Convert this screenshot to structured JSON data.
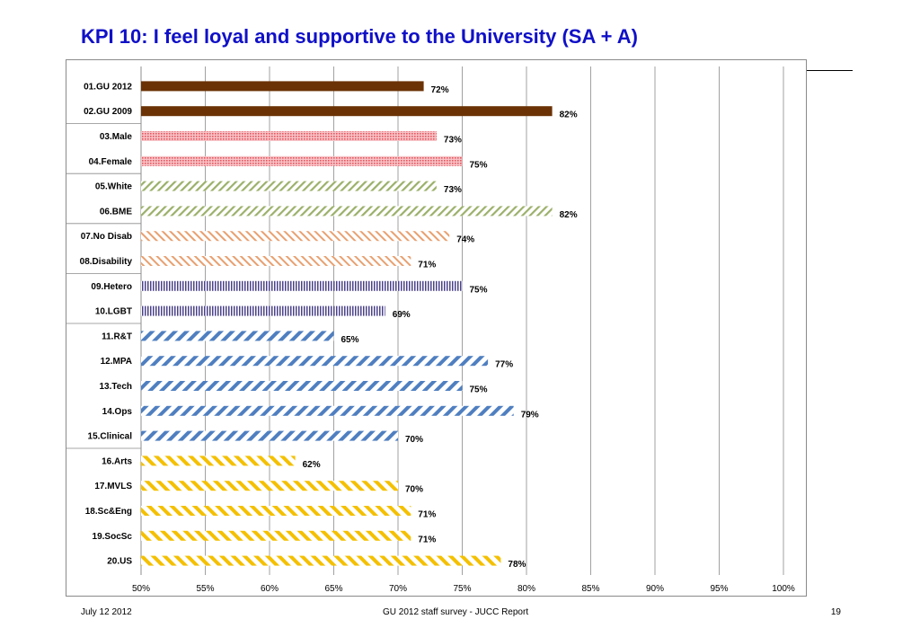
{
  "title": "KPI 10: I feel loyal and supportive to the University (SA + A)",
  "footer": {
    "date": "July 12 2012",
    "source": "GU 2012 staff survey -  JUCC Report",
    "page": "19"
  },
  "chart_data": {
    "type": "bar",
    "orientation": "horizontal",
    "title": "",
    "xlabel": "",
    "ylabel": "",
    "xlim": [
      0.5,
      1.0
    ],
    "x_ticks": [
      "50%",
      "55%",
      "60%",
      "65%",
      "70%",
      "75%",
      "80%",
      "85%",
      "90%",
      "95%",
      "100%"
    ],
    "grid": "vertical",
    "legend": "none",
    "categories": [
      "01.GU 2012",
      "02.GU 2009",
      "03.Male",
      "04.Female",
      "05.White",
      "06.BME",
      "07.No Disab",
      "08.Disability",
      "09.Hetero",
      "10.LGBT",
      "11.R&T",
      "12.MPA",
      "13.Tech",
      "14.Ops",
      "15.Clinical",
      "16.Arts",
      "17.MVLS",
      "18.Sc&Eng",
      "19.SocSc",
      "20.US"
    ],
    "values": [
      0.72,
      0.82,
      0.73,
      0.75,
      0.73,
      0.82,
      0.74,
      0.71,
      0.75,
      0.69,
      0.65,
      0.77,
      0.75,
      0.79,
      0.7,
      0.62,
      0.7,
      0.71,
      0.71,
      0.78
    ],
    "value_labels": [
      "72%",
      "82%",
      "73%",
      "75%",
      "73%",
      "82%",
      "74%",
      "71%",
      "75%",
      "69%",
      "65%",
      "77%",
      "75%",
      "79%",
      "70%",
      "62%",
      "70%",
      "71%",
      "71%",
      "78%"
    ],
    "bar_styles": [
      "solid-brown",
      "solid-brown",
      "pink-dots",
      "pink-dots",
      "green-diagonal",
      "green-diagonal",
      "orange-diagonal",
      "orange-diagonal",
      "purple-vertical",
      "purple-vertical",
      "blue-diagonal",
      "blue-diagonal",
      "blue-diagonal",
      "blue-diagonal",
      "blue-diagonal",
      "gold-diagonal",
      "gold-diagonal",
      "gold-diagonal",
      "gold-diagonal",
      "gold-diagonal"
    ],
    "group_breaks_after": [
      1,
      3,
      5,
      7,
      9,
      14
    ],
    "colors": {
      "brown": "#6b3205",
      "pink": "#e8555f",
      "green": "#9bb06a",
      "orange": "#e8a070",
      "purple": "#4a4288",
      "blue": "#4f7fc0",
      "gold": "#f4c000",
      "title": "#1010c8"
    }
  }
}
